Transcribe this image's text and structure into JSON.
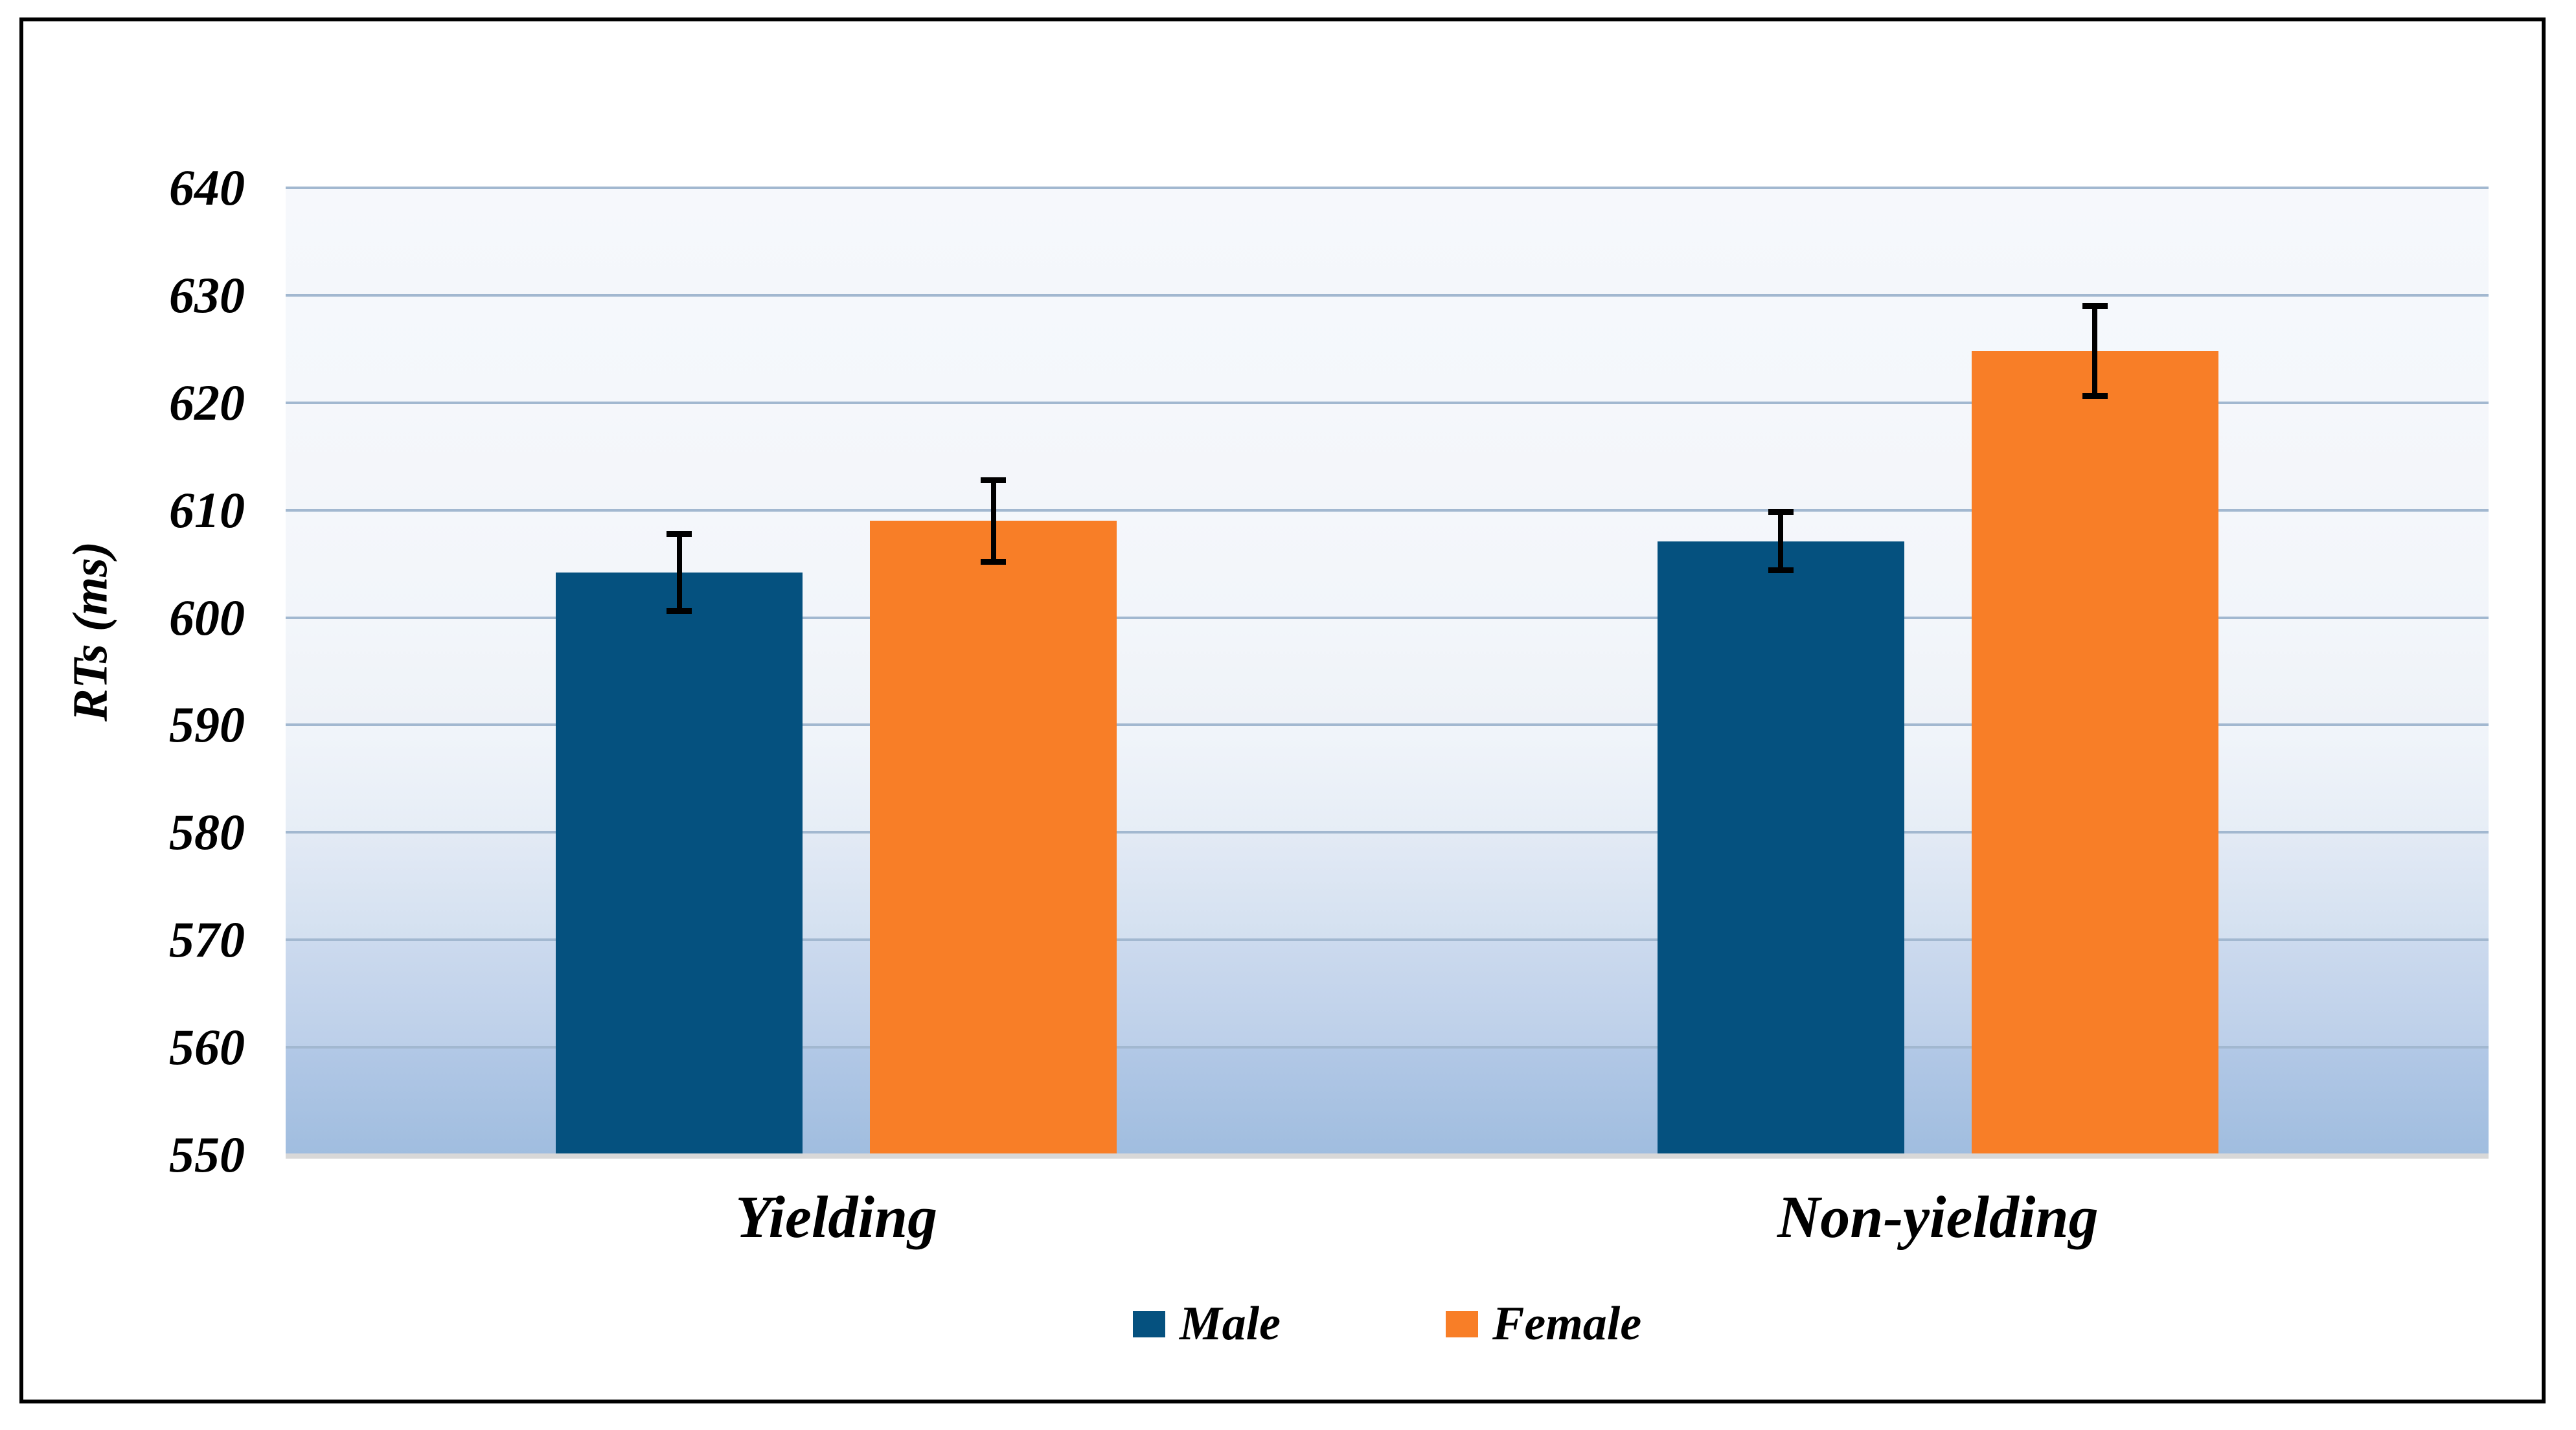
{
  "chart_data": {
    "type": "bar",
    "title": "",
    "xlabel": "",
    "ylabel": "RTs (ms)",
    "categories": [
      "Yielding",
      "Non-yielding"
    ],
    "series": [
      {
        "name": "Male",
        "color": "#05517F",
        "values": [
          604.2,
          607.1
        ],
        "errors": [
          3.6,
          2.7
        ]
      },
      {
        "name": "Female",
        "color": "#F87E27",
        "values": [
          609.0,
          624.8
        ],
        "errors": [
          3.8,
          4.2
        ]
      }
    ],
    "ylim": [
      550,
      640
    ],
    "ytick_step": 10,
    "yticks": [
      640,
      630,
      620,
      610,
      600,
      590,
      580,
      570,
      560,
      550
    ],
    "grid": true,
    "legend_position": "bottom",
    "error_bars": true
  },
  "colors": {
    "text": "#000000",
    "figure_border": "#000000",
    "gridline": "#A2B8D0",
    "axis_baseline": "#D8D8D8",
    "error_bar": "#000000",
    "plot_band_gradients": [
      [
        "#F6F8FC",
        "#F4F7FB"
      ],
      [
        "#F5F8FC",
        "#F4F7FB"
      ],
      [
        "#F5F7FB",
        "#F3F6FA"
      ],
      [
        "#F4F7FB",
        "#F2F5FA"
      ],
      [
        "#F3F6FA",
        "#EEF2F8"
      ],
      [
        "#F1F5FA",
        "#E6EDF6"
      ],
      [
        "#E3EAF5",
        "#D3E0F0"
      ],
      [
        "#CCDAEE",
        "#BCCFE9"
      ],
      [
        "#B2C8E6",
        "#A0BDDF"
      ]
    ]
  }
}
